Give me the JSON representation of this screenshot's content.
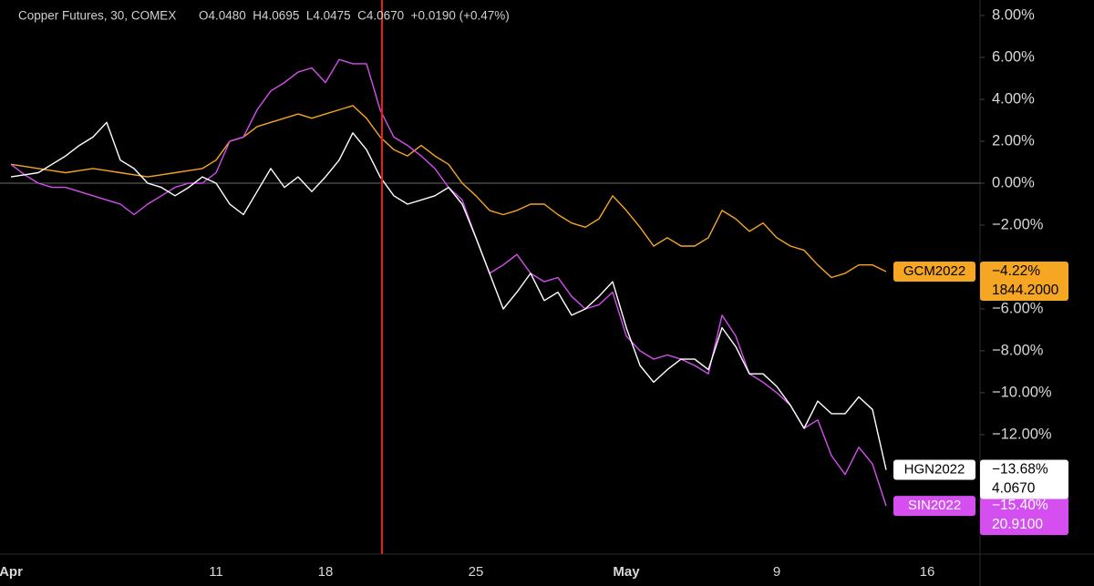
{
  "chart_data": {
    "type": "line",
    "title": "Copper Futures, 30, COMEX",
    "ohlc": "O4.0480  H4.0695  L4.0475  C4.0670  +0.0190 (+0.47%)",
    "categories": [
      "Apr",
      null,
      null,
      null,
      null,
      null,
      null,
      null,
      null,
      null,
      null,
      null,
      null,
      null,
      null,
      "11",
      null,
      null,
      null,
      null,
      null,
      null,
      null,
      "18",
      null,
      null,
      null,
      null,
      null,
      null,
      null,
      null,
      null,
      null,
      "25",
      null,
      null,
      null,
      null,
      null,
      null,
      null,
      null,
      null,
      null,
      "May",
      null,
      null,
      null,
      null,
      null,
      null,
      null,
      null,
      null,
      null,
      "9",
      null,
      null,
      null,
      null,
      null,
      null,
      null,
      null,
      null,
      null,
      "16"
    ],
    "series": [
      {
        "name": "GCM2022",
        "color": "#f5a623",
        "text_color": "#000000",
        "last_label": "−4.22%",
        "last_price": "1844.2000",
        "values": [
          0.9,
          0.8,
          0.7,
          0.6,
          0.5,
          0.6,
          0.7,
          0.6,
          0.5,
          0.4,
          0.3,
          0.4,
          0.5,
          0.6,
          0.7,
          1.1,
          2,
          2.2,
          2.7,
          2.9,
          3.1,
          3.3,
          3.1,
          3.3,
          3.5,
          3.7,
          3.1,
          2.2,
          1.6,
          1.3,
          1.8,
          1.3,
          0.9,
          0,
          -0.6,
          -1.3,
          -1.5,
          -1.3,
          -1,
          -1,
          -1.5,
          -1.9,
          -2.1,
          -1.7,
          -0.6,
          -1.3,
          -2.1,
          -3,
          -2.6,
          -3,
          -3,
          -2.6,
          -1.3,
          -1.7,
          -2.3,
          -1.9,
          -2.6,
          -3,
          -3.2,
          -3.9,
          -4.5,
          -4.3,
          -3.9,
          -3.9,
          -4.22,
          null,
          null,
          null
        ]
      },
      {
        "name": "SIN2022",
        "color": "#d44ef0",
        "text_color": "#ffffff",
        "last_label": "−15.40%",
        "last_price": "20.9100",
        "values": [
          0.9,
          0.4,
          0,
          -0.2,
          -0.2,
          -0.4,
          -0.6,
          -0.8,
          -1,
          -1.5,
          -1,
          -0.6,
          -0.2,
          0,
          0,
          0.5,
          2,
          2.2,
          3.5,
          4.4,
          4.8,
          5.3,
          5.5,
          4.8,
          5.9,
          5.7,
          5.7,
          3.5,
          2.2,
          1.8,
          1.3,
          0.7,
          -0.2,
          -0.8,
          -2.6,
          -4.3,
          -3.9,
          -3.4,
          -4.3,
          -4.7,
          -4.5,
          -5.4,
          -6,
          -5.8,
          -5.2,
          -7.3,
          -8,
          -8.4,
          -8.2,
          -8.4,
          -8.7,
          -9.1,
          -6.3,
          -7.3,
          -9.1,
          -9.5,
          -10,
          -10.6,
          -11.7,
          -11.3,
          -13,
          -13.9,
          -12.6,
          -13.4,
          -15.4,
          null,
          null,
          null
        ]
      },
      {
        "name": "HGN2022",
        "color": "#ffffff",
        "text_color": "#000000",
        "last_label": "−13.68%",
        "last_price": "4.0670",
        "values": [
          0.3,
          0.4,
          0.5,
          0.9,
          1.3,
          1.8,
          2.2,
          2.9,
          1.1,
          0.7,
          0,
          -0.2,
          -0.6,
          -0.2,
          0.3,
          0,
          -1,
          -1.5,
          -0.4,
          0.7,
          -0.2,
          0.3,
          -0.4,
          0.3,
          1.1,
          2.4,
          1.6,
          0.3,
          -0.6,
          -1,
          -0.8,
          -0.6,
          -0.2,
          -1,
          -2.6,
          -4.3,
          -6,
          -5.2,
          -4.3,
          -5.6,
          -5.2,
          -6.3,
          -6,
          -5.4,
          -4.7,
          -6.9,
          -8.7,
          -9.5,
          -8.9,
          -8.4,
          -8.4,
          -8.9,
          -6.9,
          -7.8,
          -9.1,
          -9.1,
          -9.7,
          -10.6,
          -11.7,
          -10.4,
          -11,
          -11,
          -10.2,
          -10.8,
          -13.68,
          null,
          null,
          null
        ]
      }
    ],
    "ylim": [
      -17.7,
      8.74
    ],
    "yticks": [
      {
        "value": 8,
        "label": "8.00%"
      },
      {
        "value": 6,
        "label": "6.00%"
      },
      {
        "value": 4,
        "label": "4.00%"
      },
      {
        "value": 2,
        "label": "2.00%"
      },
      {
        "value": 0,
        "label": "0.00%"
      },
      {
        "value": -2,
        "label": "−2.00%"
      },
      {
        "value": -6,
        "label": "−6.00%"
      },
      {
        "value": -8,
        "label": "−8.00%"
      },
      {
        "value": -10,
        "label": "−10.00%"
      },
      {
        "value": -12,
        "label": "−12.00%"
      }
    ],
    "zero_line": true
  }
}
